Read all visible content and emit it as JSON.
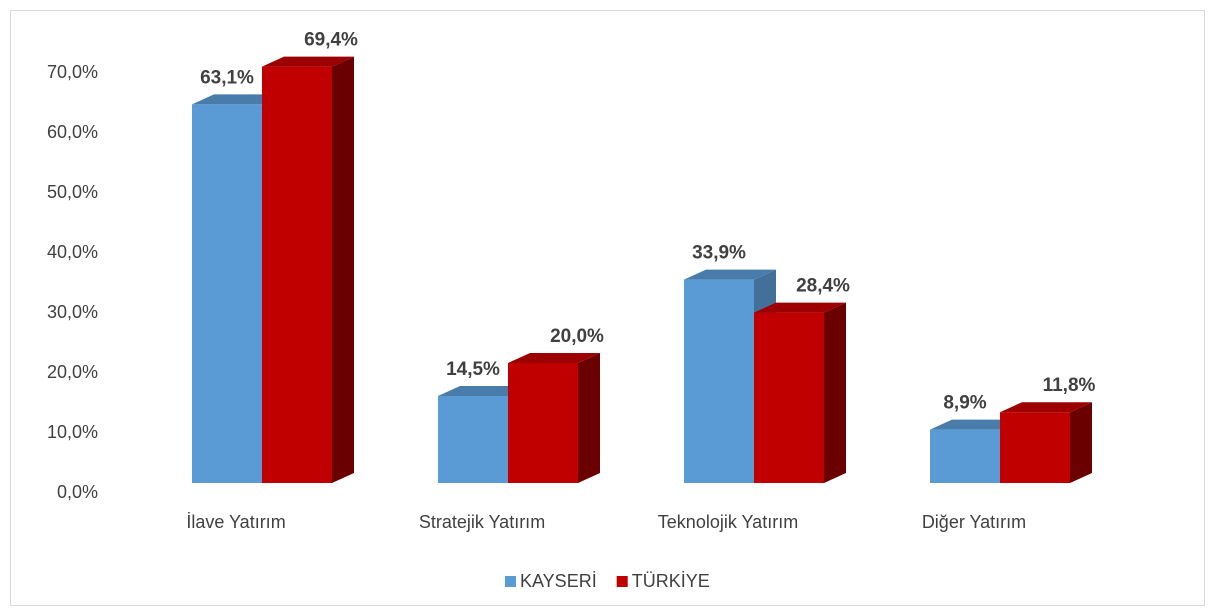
{
  "chart_data": {
    "type": "bar3d",
    "categories": [
      "İlave Yatırım",
      "Stratejik Yatırım",
      "Teknolojik Yatırım",
      "Diğer Yatırım"
    ],
    "series": [
      {
        "name": "KAYSERİ",
        "color": "#5b9bd5",
        "values": [
          63.1,
          14.5,
          33.9,
          8.9
        ],
        "value_labels": [
          "63,1%",
          "14,5%",
          "33,9%",
          "8,9%"
        ]
      },
      {
        "name": "TÜRKİYE",
        "color": "#c00000",
        "values": [
          69.4,
          20.0,
          28.4,
          11.8
        ],
        "value_labels": [
          "69,4%",
          "20,0%",
          "28,4%",
          "11,8%"
        ]
      }
    ],
    "ylim": [
      0,
      70
    ],
    "yticks": [
      {
        "value": 0,
        "label": "0,0%"
      },
      {
        "value": 10,
        "label": "10,0%"
      },
      {
        "value": 20,
        "label": "20,0%"
      },
      {
        "value": 30,
        "label": "30,0%"
      },
      {
        "value": 40,
        "label": "40,0%"
      },
      {
        "value": 50,
        "label": "50,0%"
      },
      {
        "value": 60,
        "label": "60,0%"
      },
      {
        "value": 70,
        "label": "70,0%"
      }
    ],
    "grid": false,
    "legend": "bottom"
  }
}
